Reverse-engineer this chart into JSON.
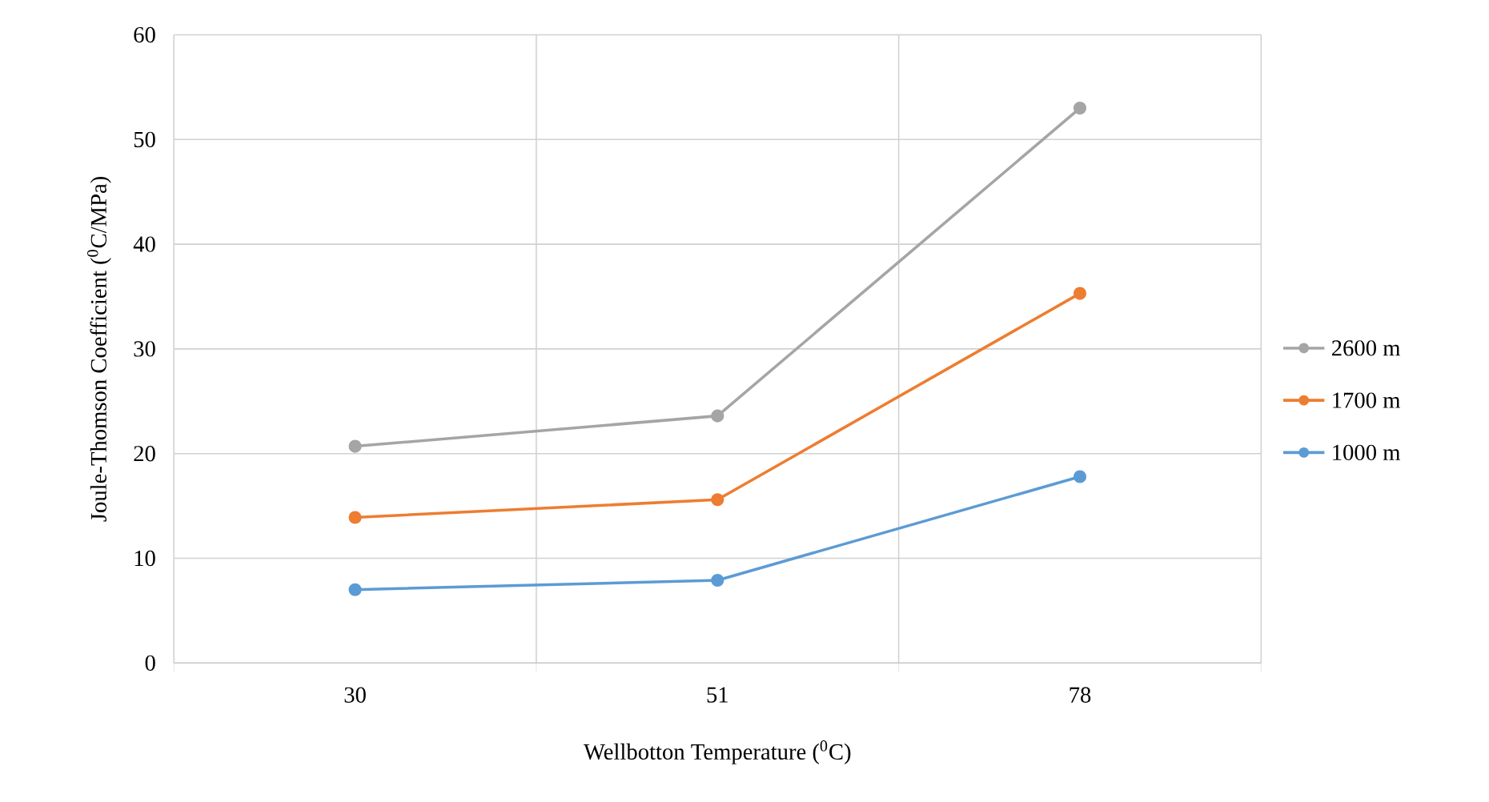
{
  "chart_data": {
    "type": "line",
    "xlabel": "Wellbotton Temperature ($^{0}$C)",
    "ylabel": "Joule-Thomson Coefficient ($^{0}$C/MPa)",
    "categories": [
      "30",
      "51",
      "78"
    ],
    "series": [
      {
        "name": "2600 m",
        "color": "#a5a5a5",
        "values": [
          20.7,
          23.6,
          53.0
        ]
      },
      {
        "name": "1700 m",
        "color": "#ed7d31",
        "values": [
          13.9,
          15.6,
          35.3
        ]
      },
      {
        "name": "1000 m",
        "color": "#5b9bd5",
        "values": [
          7.0,
          7.9,
          17.8
        ]
      }
    ],
    "ylim": [
      0,
      60
    ],
    "yticks": [
      0,
      10,
      20,
      30,
      40,
      50,
      60
    ],
    "grid": true,
    "legend": "right",
    "marker": "circle",
    "line_style": "solid"
  }
}
